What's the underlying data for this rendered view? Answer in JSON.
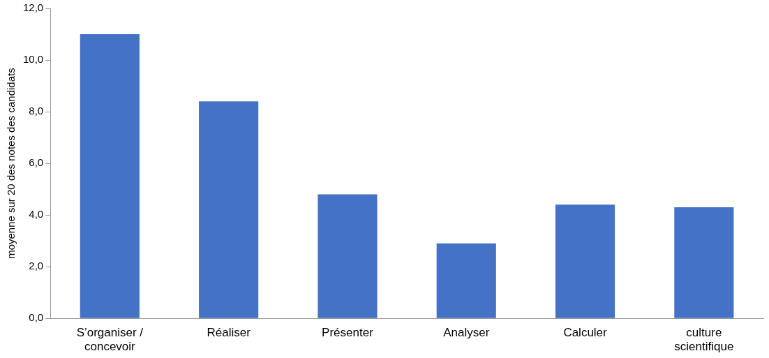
{
  "chart_data": {
    "type": "bar",
    "ylabel": "moyenne sur 20 des notes des candidats",
    "categories": [
      "S’organiser /\nconcevoir",
      "Réaliser",
      "Présenter",
      "Analyser",
      "Calculer",
      "culture\nscientifique"
    ],
    "values": [
      11.0,
      8.4,
      4.8,
      2.9,
      4.4,
      4.3
    ],
    "color": "#4472c4",
    "ylim": [
      0,
      12
    ],
    "yticks": [
      {
        "value": 0,
        "label": "0,0"
      },
      {
        "value": 2,
        "label": "2,0"
      },
      {
        "value": 4,
        "label": "4,0"
      },
      {
        "value": 6,
        "label": "6,0"
      },
      {
        "value": 8,
        "label": "8,0"
      },
      {
        "value": 10,
        "label": "10,0"
      },
      {
        "value": 12,
        "label": "12,0"
      }
    ],
    "grid": false,
    "legend": false
  }
}
